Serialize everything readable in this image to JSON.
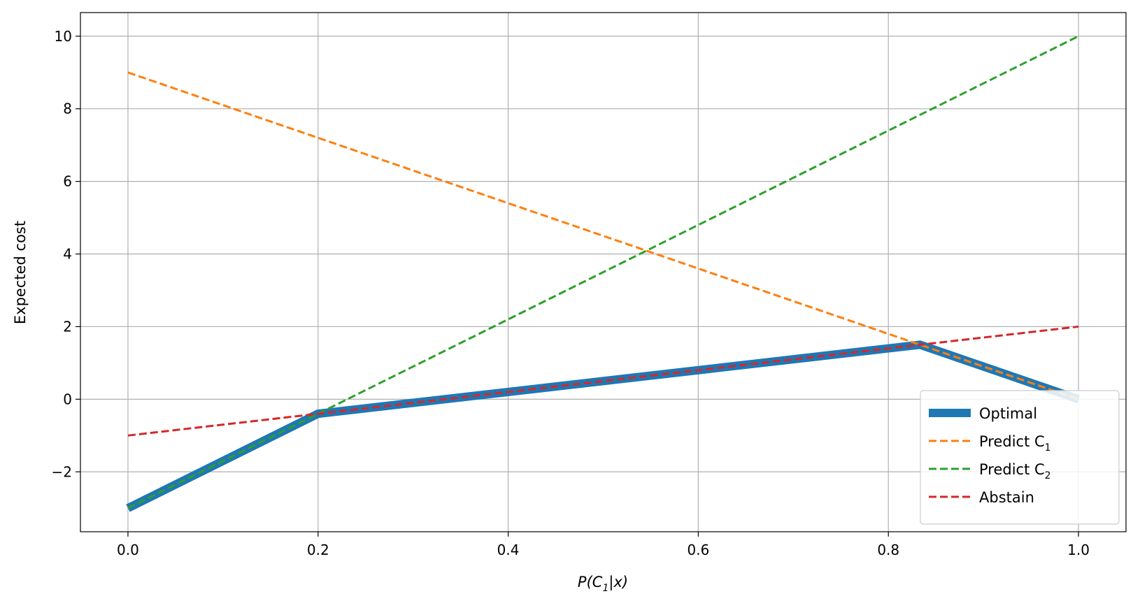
{
  "chart_data": {
    "type": "line",
    "title": "",
    "xlabel": {
      "pre": "P(C",
      "sub": "1",
      "post": "|x)"
    },
    "ylabel": "Expected cost",
    "xlim": [
      -0.05,
      1.05
    ],
    "ylim": [
      -3.65,
      10.65
    ],
    "xticks": [
      0.0,
      0.2,
      0.4,
      0.6,
      0.8,
      1.0
    ],
    "xtick_labels": [
      "0.0",
      "0.2",
      "0.4",
      "0.6",
      "0.8",
      "1.0"
    ],
    "yticks": [
      -2,
      0,
      2,
      4,
      6,
      8,
      10
    ],
    "ytick_labels": [
      "−2",
      "0",
      "2",
      "4",
      "6",
      "8",
      "10"
    ],
    "grid": true,
    "legend_position": "lower-right",
    "series": [
      {
        "name": "Optimal",
        "label_pre": "Optimal",
        "label_sub": "",
        "color": "#1f77b4",
        "style": "solid",
        "x": [
          0.0,
          0.2,
          0.8333,
          1.0
        ],
        "y": [
          -3.0,
          -0.4,
          1.5,
          0.0
        ]
      },
      {
        "name": "Predict C1",
        "label_pre": "Predict C",
        "label_sub": "1",
        "color": "#ff7f0e",
        "style": "dashed",
        "x": [
          0.0,
          1.0
        ],
        "y": [
          9.0,
          0.0
        ]
      },
      {
        "name": "Predict C2",
        "label_pre": "Predict C",
        "label_sub": "2",
        "color": "#2ca02c",
        "style": "dashed",
        "x": [
          0.0,
          1.0
        ],
        "y": [
          -3.0,
          10.0
        ]
      },
      {
        "name": "Abstain",
        "label_pre": "Abstain",
        "label_sub": "",
        "color": "#d62728",
        "style": "dashed",
        "x": [
          0.0,
          1.0
        ],
        "y": [
          -1.0,
          2.0
        ]
      }
    ]
  }
}
